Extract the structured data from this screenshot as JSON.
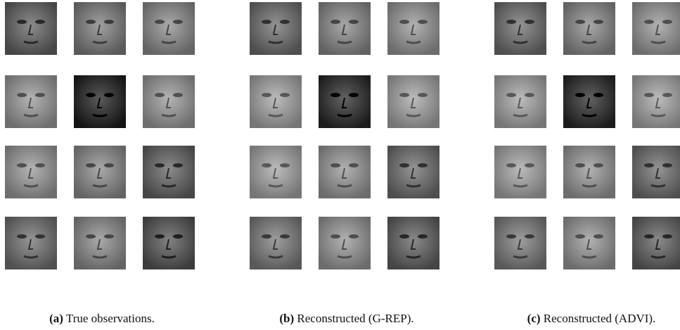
{
  "figure": {
    "panels": [
      {
        "label": "(a)",
        "caption": "True observations."
      },
      {
        "label": "(b)",
        "caption": "Reconstructed (G-REP)."
      },
      {
        "label": "(c)",
        "caption": "Reconstructed (ADVI)."
      }
    ]
  }
}
